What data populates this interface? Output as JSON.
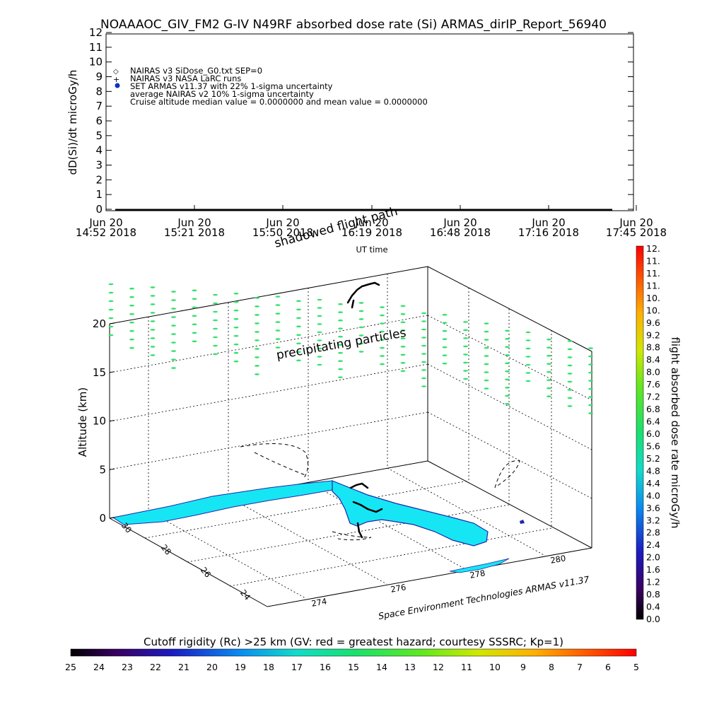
{
  "title": "NOAAAOC_GIV_FM2 G-IV    N49RF  absorbed dose rate (Si) ARMAS_dirIP_Report_56940",
  "chart_data": [
    {
      "type": "line",
      "title": "NOAAAOC_GIV_FM2 G-IV    N49RF  absorbed dose rate (Si) ARMAS_dirIP_Report_56940",
      "ylabel": "dD(Si)/dt microGy/h",
      "xlabel": "UT time",
      "ylim": [
        0,
        12
      ],
      "y_ticks": [
        "0",
        "1",
        "2",
        "3",
        "4",
        "5",
        "6",
        "7",
        "8",
        "9",
        "10",
        "11",
        "12"
      ],
      "x_ticks": [
        {
          "top": "Jun 20",
          "bottom": "14:52 2018"
        },
        {
          "top": "Jun 20",
          "bottom": "15:21 2018"
        },
        {
          "top": "Jun 20",
          "bottom": "15:50 2018"
        },
        {
          "top": "Jun 20",
          "bottom": "16:19 2018"
        },
        {
          "top": "Jun 20",
          "bottom": "16:48 2018"
        },
        {
          "top": "Jun 20",
          "bottom": "17:16 2018"
        },
        {
          "top": "Jun 20",
          "bottom": "17:45 2018"
        }
      ],
      "legend": [
        "NAIRAS v3 SiDose_G0.txt SEP=0",
        "NAIRAS v3 NASA LaRC runs",
        "SET ARMAS v11.37 with 22% 1-sigma uncertainty",
        "average NAIRAS v2 10% 1-sigma uncertainty",
        "Cruise altitude median value = 0.0000000 and mean value = 0.0000000"
      ],
      "legend_position": "top-left",
      "series": [
        {
          "name": "NAIRAS v3 NASA LaRC runs",
          "values": [
            0,
            0
          ]
        }
      ],
      "colors": {
        "armas": "#0a32c8",
        "axis": "#000000"
      }
    },
    {
      "type": "scatter",
      "zlabel": "Altitude (km)",
      "z_ticks": [
        "0",
        "5",
        "10",
        "15",
        "20"
      ],
      "lat_ticks": [
        "30",
        "28",
        "26",
        "24"
      ],
      "lon_ticks": [
        "274",
        "276",
        "278",
        "280"
      ],
      "annotations": [
        "shadowed flight path",
        "precipitating particles"
      ],
      "credit": "Space Environment Technologies ARMAS v11.37",
      "particles": {
        "dose_rate": 5.5,
        "color": "#33e26a"
      }
    }
  ],
  "colorbar_right": {
    "label": "flight absorbed dose rate microGy/h",
    "ticks": [
      "0.0",
      "0.4",
      "0.8",
      "1.2",
      "1.6",
      "2.0",
      "2.4",
      "2.8",
      "3.2",
      "3.6",
      "4.0",
      "4.4",
      "4.8",
      "5.2",
      "5.6",
      "6.0",
      "6.4",
      "6.8",
      "7.2",
      "7.6",
      "8.0",
      "8.4",
      "8.8",
      "9.2",
      "9.6",
      "10.",
      "10.",
      "11.",
      "11.",
      "11.",
      "12."
    ]
  },
  "colorbar_bottom": {
    "label": "Cutoff rigidity (Rc) >25 km (GV: red = greatest hazard; courtesy SSSRC; Kp=1)",
    "ticks": [
      "25",
      "24",
      "23",
      "22",
      "21",
      "20",
      "19",
      "18",
      "17",
      "16",
      "15",
      "14",
      "13",
      "12",
      "11",
      "10",
      "9",
      "8",
      "7",
      "6",
      "5"
    ]
  },
  "map": {
    "land_color": "#16e6f4",
    "coast_color": "#1e2aa8"
  }
}
